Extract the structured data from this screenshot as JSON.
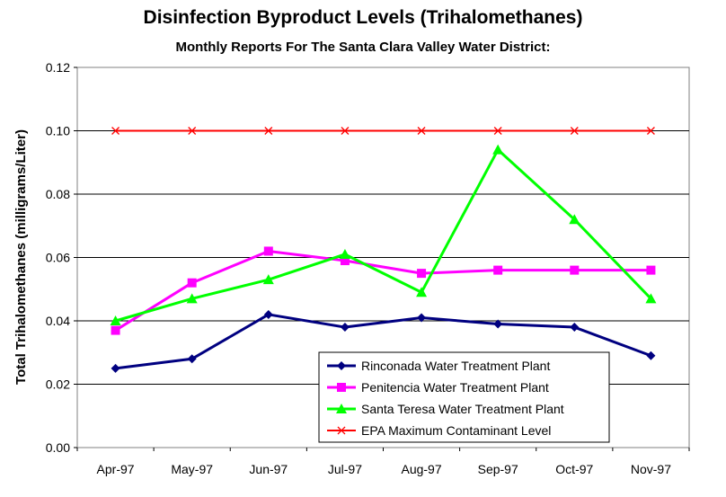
{
  "chart_data": {
    "type": "line",
    "title": "Disinfection Byproduct Levels (Trihalomethanes)",
    "subtitle": "Monthly Reports For The Santa Clara Valley Water District:",
    "xlabel": "",
    "ylabel": "Total Trihalomethanes (milligrams/Liter)",
    "ylim": [
      0,
      0.12
    ],
    "yticks": [
      "0.00",
      "0.02",
      "0.04",
      "0.06",
      "0.08",
      "0.10",
      "0.12"
    ],
    "categories": [
      "Apr-97",
      "May-97",
      "Jun-97",
      "Jul-97",
      "Aug-97",
      "Sep-97",
      "Oct-97",
      "Nov-97"
    ],
    "grid": "horizontal",
    "legend_position": "bottom-right",
    "series": [
      {
        "name": "Rinconada Water Treatment Plant",
        "color": "#000080",
        "marker": "diamond",
        "values": [
          0.025,
          0.028,
          0.042,
          0.038,
          0.041,
          0.039,
          0.038,
          0.029
        ]
      },
      {
        "name": "Penitencia Water Treatment Plant",
        "color": "#ff00ff",
        "marker": "square",
        "values": [
          0.037,
          0.052,
          0.062,
          0.059,
          0.055,
          0.056,
          0.056,
          0.056
        ]
      },
      {
        "name": "Santa Teresa Water Treatment Plant",
        "color": "#00ff00",
        "marker": "triangle",
        "values": [
          0.04,
          0.047,
          0.053,
          0.061,
          0.049,
          0.094,
          0.072,
          0.047
        ]
      },
      {
        "name": "EPA Maximum Contaminant Level",
        "color": "#ff0000",
        "marker": "x",
        "values": [
          0.1,
          0.1,
          0.1,
          0.1,
          0.1,
          0.1,
          0.1,
          0.1
        ]
      }
    ]
  }
}
